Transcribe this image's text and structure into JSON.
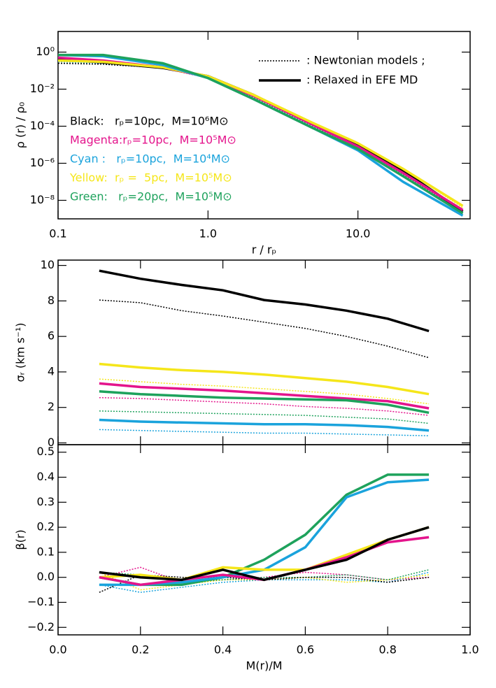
{
  "chart_data": [
    {
      "type": "line",
      "log_x": true,
      "log_y": true,
      "xlabel": "r / rₚ",
      "ylabel": "ρ (r) / ρ₀",
      "x": [
        0.1,
        0.2,
        0.5,
        1,
        2,
        5,
        10,
        20,
        50
      ],
      "xlim": [
        0.1,
        56
      ],
      "ylim": [
        1e-09,
        13
      ],
      "xticks": [
        0.1,
        {
          "value": 1,
          "label": "1.0"
        },
        {
          "value": 10,
          "label": "10.0"
        }
      ],
      "yticks": [
        {
          "value": 1,
          "label": "10⁰"
        },
        {
          "value": 0.01,
          "label": "10⁻²"
        },
        {
          "value": 0.0001,
          "label": "10⁻⁴"
        },
        {
          "value": 1e-06,
          "label": "10⁻⁶"
        },
        {
          "value": 1e-08,
          "label": "10⁻⁸"
        }
      ],
      "series": [
        {
          "color": "#000000",
          "dotted": true,
          "values": [
            0.25,
            0.22,
            0.14,
            0.04,
            0.004,
            0.00012,
            9e-06,
            3e-07,
            2e-09
          ]
        },
        {
          "color": "#e4148c",
          "dotted": true,
          "values": [
            0.3,
            0.25,
            0.15,
            0.04,
            0.004,
            0.00011,
            8e-06,
            3e-07,
            2e-09
          ]
        },
        {
          "color": "#f5e61a",
          "dotted": true,
          "values": [
            0.3,
            0.25,
            0.14,
            0.05,
            0.005,
            0.00015,
            1.2e-05,
            5e-07,
            4e-09
          ]
        },
        {
          "color": "#1aa3dc",
          "dotted": true,
          "values": [
            0.3,
            0.25,
            0.15,
            0.04,
            0.003,
            9e-05,
            6e-06,
            2e-07,
            2e-09
          ]
        },
        {
          "color": "#1ea25c",
          "dotted": true,
          "values": [
            0.35,
            0.3,
            0.15,
            0.04,
            0.0035,
            0.0001,
            7e-06,
            2.5e-07,
            2e-09
          ]
        },
        {
          "color": "#000000",
          "dotted": false,
          "values": [
            0.4,
            0.28,
            0.14,
            0.05,
            0.005,
            0.00013,
            1e-05,
            4e-07,
            2.5e-09
          ]
        },
        {
          "color": "#e4148c",
          "dotted": false,
          "values": [
            0.5,
            0.35,
            0.15,
            0.045,
            0.0045,
            0.00012,
            8e-06,
            3e-07,
            3e-09
          ]
        },
        {
          "color": "#f5e61a",
          "dotted": false,
          "values": [
            0.35,
            0.3,
            0.15,
            0.05,
            0.005,
            0.00015,
            1.2e-05,
            5e-07,
            5e-09
          ]
        },
        {
          "color": "#1aa3dc",
          "dotted": false,
          "values": [
            0.7,
            0.6,
            0.2,
            0.04,
            0.003,
            8e-05,
            5e-06,
            1e-07,
            1.5e-09
          ]
        },
        {
          "color": "#1ea25c",
          "dotted": false,
          "values": [
            0.7,
            0.7,
            0.25,
            0.04,
            0.003,
            8e-05,
            6e-06,
            2e-07,
            2e-09
          ]
        }
      ],
      "style_key": [
        {
          "dotted": true,
          "text": ": Newtonian models ;"
        },
        {
          "dotted": false,
          "text": ": Relaxed in EFE MD"
        }
      ],
      "legend": [
        {
          "text": "Black:   rₚ=10pc,  M=10⁶M⊙",
          "color": "#000000"
        },
        {
          "text": "Magenta:rₚ=10pc,  M=10⁵M⊙",
          "color": "#e4148c"
        },
        {
          "text": "Cyan :   rₚ=10pc,  M=10⁴M⊙",
          "color": "#1aa3dc"
        },
        {
          "text": "Yellow:  rₚ =  5pc,  M=10⁵M⊙",
          "color": "#f5e61a"
        },
        {
          "text": "Green:   rₚ=20pc,  M=10⁵M⊙",
          "color": "#1ea25c"
        }
      ]
    },
    {
      "type": "line",
      "ylabel": "σᵣ (km s⁻¹)",
      "x": [
        0.1,
        0.2,
        0.3,
        0.4,
        0.5,
        0.6,
        0.7,
        0.8,
        0.9
      ],
      "xlim": [
        0,
        1
      ],
      "ylim": [
        -0.1,
        10.3
      ],
      "yticks": [
        0,
        2,
        4,
        6,
        8,
        10
      ],
      "series": [
        {
          "color": "#000000",
          "dotted": false,
          "values": [
            9.7,
            9.25,
            8.9,
            8.6,
            8.05,
            7.8,
            7.45,
            7.0,
            6.3
          ]
        },
        {
          "color": "#000000",
          "dotted": true,
          "values": [
            8.05,
            7.9,
            7.45,
            7.15,
            6.8,
            6.45,
            6.0,
            5.45,
            4.8
          ]
        },
        {
          "color": "#f5e61a",
          "dotted": false,
          "values": [
            4.45,
            4.25,
            4.1,
            4.0,
            3.85,
            3.65,
            3.45,
            3.15,
            2.75
          ]
        },
        {
          "color": "#f5e61a",
          "dotted": true,
          "values": [
            3.6,
            3.45,
            3.3,
            3.2,
            3.05,
            2.9,
            2.75,
            2.5,
            2.2
          ]
        },
        {
          "color": "#e4148c",
          "dotted": false,
          "values": [
            3.35,
            3.15,
            3.05,
            2.95,
            2.8,
            2.65,
            2.5,
            2.35,
            1.95
          ]
        },
        {
          "color": "#e4148c",
          "dotted": true,
          "values": [
            2.55,
            2.5,
            2.4,
            2.3,
            2.2,
            2.05,
            1.95,
            1.8,
            1.55
          ]
        },
        {
          "color": "#1ea25c",
          "dotted": false,
          "values": [
            2.9,
            2.75,
            2.65,
            2.55,
            2.5,
            2.45,
            2.4,
            2.15,
            1.7
          ]
        },
        {
          "color": "#1ea25c",
          "dotted": true,
          "values": [
            1.8,
            1.75,
            1.7,
            1.65,
            1.6,
            1.55,
            1.45,
            1.35,
            1.1
          ]
        },
        {
          "color": "#1aa3dc",
          "dotted": false,
          "values": [
            1.3,
            1.2,
            1.15,
            1.1,
            1.05,
            1.05,
            1.0,
            0.9,
            0.7
          ]
        },
        {
          "color": "#1aa3dc",
          "dotted": true,
          "values": [
            0.75,
            0.7,
            0.65,
            0.6,
            0.55,
            0.55,
            0.5,
            0.45,
            0.4
          ]
        }
      ]
    },
    {
      "type": "line",
      "ylabel": "β(r)",
      "xlabel": "M(r)/M",
      "x": [
        0.1,
        0.2,
        0.3,
        0.4,
        0.5,
        0.6,
        0.7,
        0.8,
        0.9
      ],
      "xlim": [
        0,
        1
      ],
      "ylim": [
        -0.23,
        0.53
      ],
      "xticks": [
        {
          "value": 0,
          "label": "0.0"
        },
        0.2,
        0.4,
        0.6,
        0.8,
        {
          "value": 1,
          "label": "1.0"
        }
      ],
      "yticks": [
        {
          "value": -0.2,
          "label": "−0.2"
        },
        {
          "value": -0.1,
          "label": "−0.1"
        },
        {
          "value": 0,
          "label": "0.0"
        },
        0.1,
        0.2,
        0.3,
        0.4,
        0.5
      ],
      "series": [
        {
          "color": "#e4148c",
          "dotted": true,
          "values": [
            0.0,
            0.04,
            -0.02,
            -0.01,
            0.0,
            0.02,
            0.01,
            -0.01,
            0.0
          ]
        },
        {
          "color": "#1aa3dc",
          "dotted": true,
          "values": [
            -0.03,
            -0.06,
            -0.04,
            -0.02,
            -0.01,
            -0.01,
            -0.01,
            -0.02,
            0.02
          ]
        },
        {
          "color": "#f5e61a",
          "dotted": true,
          "values": [
            0.02,
            -0.05,
            -0.03,
            -0.01,
            -0.01,
            0.0,
            -0.02,
            -0.01,
            0.01
          ]
        },
        {
          "color": "#1ea25c",
          "dotted": true,
          "values": [
            0.02,
            0.01,
            -0.02,
            -0.01,
            0.0,
            0.0,
            0.01,
            -0.01,
            0.03
          ]
        },
        {
          "color": "#000000",
          "dotted": true,
          "values": [
            -0.06,
            0.01,
            0.0,
            0.0,
            -0.01,
            0.0,
            0.0,
            -0.02,
            0.0
          ]
        },
        {
          "color": "#1ea25c",
          "dotted": false,
          "values": [
            0.0,
            -0.03,
            -0.03,
            0.0,
            0.07,
            0.17,
            0.33,
            0.41,
            0.41
          ]
        },
        {
          "color": "#1aa3dc",
          "dotted": false,
          "values": [
            -0.03,
            -0.03,
            -0.02,
            0.0,
            0.03,
            0.12,
            0.32,
            0.38,
            0.39
          ]
        },
        {
          "color": "#f5e61a",
          "dotted": false,
          "values": [
            0.0,
            0.01,
            -0.01,
            0.04,
            0.03,
            0.03,
            0.09,
            0.15,
            0.2
          ]
        },
        {
          "color": "#e4148c",
          "dotted": false,
          "values": [
            0.0,
            -0.03,
            -0.01,
            0.01,
            -0.01,
            0.03,
            0.08,
            0.14,
            0.16
          ]
        },
        {
          "color": "#000000",
          "dotted": false,
          "values": [
            0.02,
            0.0,
            -0.01,
            0.03,
            -0.01,
            0.03,
            0.07,
            0.15,
            0.2
          ]
        }
      ]
    }
  ]
}
